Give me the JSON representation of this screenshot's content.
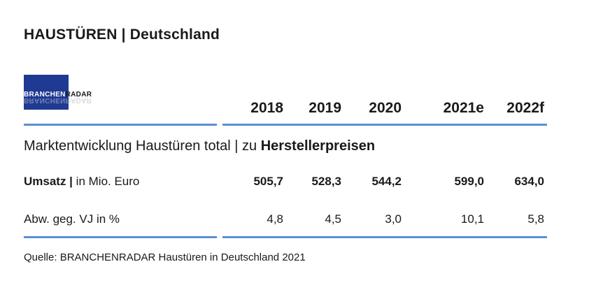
{
  "title": "HAUSTÜREN | Deutschland",
  "logo": {
    "part1": "BRANCHEN",
    "part2": "RADAR"
  },
  "subtitle": {
    "prefix": "Marktentwicklung Haustüren total | zu ",
    "bold": "Herstellerpreisen"
  },
  "chart_data": {
    "type": "table",
    "columns": [
      "2018",
      "2019",
      "2020",
      "2021e",
      "2022f"
    ],
    "rows": [
      {
        "label_bold": "Umsatz |",
        "label_rest": " in Mio. Euro",
        "values": [
          "505,7",
          "528,3",
          "544,2",
          "599,0",
          "634,0"
        ],
        "bold": true
      },
      {
        "label_bold": "",
        "label_rest": "Abw. geg. VJ in %",
        "values": [
          "4,8",
          "4,5",
          "3,0",
          "10,1",
          "5,8"
        ],
        "bold": false
      }
    ]
  },
  "source": "Quelle: BRANCHENRADAR Haustüren in Deutschland 2021",
  "colors": {
    "accent": "#5b8fd0",
    "logo_bg": "#1f3a93"
  }
}
